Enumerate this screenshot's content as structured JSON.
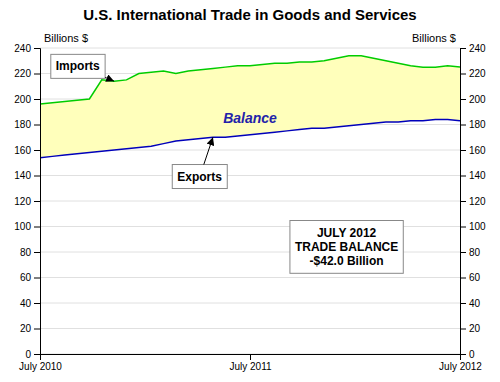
{
  "chart_data": {
    "type": "area",
    "title": "U.S. International Trade in Goods and Services",
    "ylabel": "Billions $",
    "y2label": "Billions $",
    "categories": [
      "July 2010",
      null,
      null,
      null,
      null,
      null,
      null,
      null,
      null,
      null,
      null,
      null,
      null,
      null,
      null,
      null,
      null,
      "July 2011",
      null,
      null,
      null,
      null,
      null,
      null,
      null,
      null,
      null,
      null,
      null,
      null,
      null,
      null,
      null,
      null,
      "July 2012"
    ],
    "series": [
      {
        "name": "Imports",
        "color": "#00CC00",
        "values": [
          196,
          197,
          198,
          199,
          200,
          215,
          214,
          215,
          220,
          221,
          222,
          220,
          222,
          223,
          224,
          225,
          226,
          226,
          227,
          228,
          228,
          229,
          229,
          230,
          232,
          234,
          234,
          232,
          230,
          228,
          226,
          225,
          225,
          226,
          225
        ]
      },
      {
        "name": "Exports",
        "color": "#0000BB",
        "values": [
          154,
          155,
          156,
          157,
          158,
          159,
          160,
          161,
          162,
          163,
          165,
          167,
          168,
          169,
          170,
          170,
          171,
          172,
          173,
          174,
          175,
          176,
          177,
          177,
          178,
          179,
          180,
          181,
          182,
          182,
          183,
          183,
          184,
          184,
          183
        ]
      }
    ],
    "ylim": [
      0,
      240
    ],
    "yticks": [
      0,
      20,
      40,
      60,
      80,
      100,
      120,
      140,
      160,
      180,
      200,
      220,
      240
    ],
    "y2lim": [
      0,
      240
    ],
    "y2ticks": [
      0,
      20,
      40,
      60,
      80,
      100,
      120,
      140,
      160,
      180,
      200,
      220,
      240
    ],
    "grid": true,
    "annotations": [
      [
        "JULY 2012",
        "TRADE BALANCE",
        "-$42.0 Billion"
      ],
      "Balance"
    ]
  }
}
